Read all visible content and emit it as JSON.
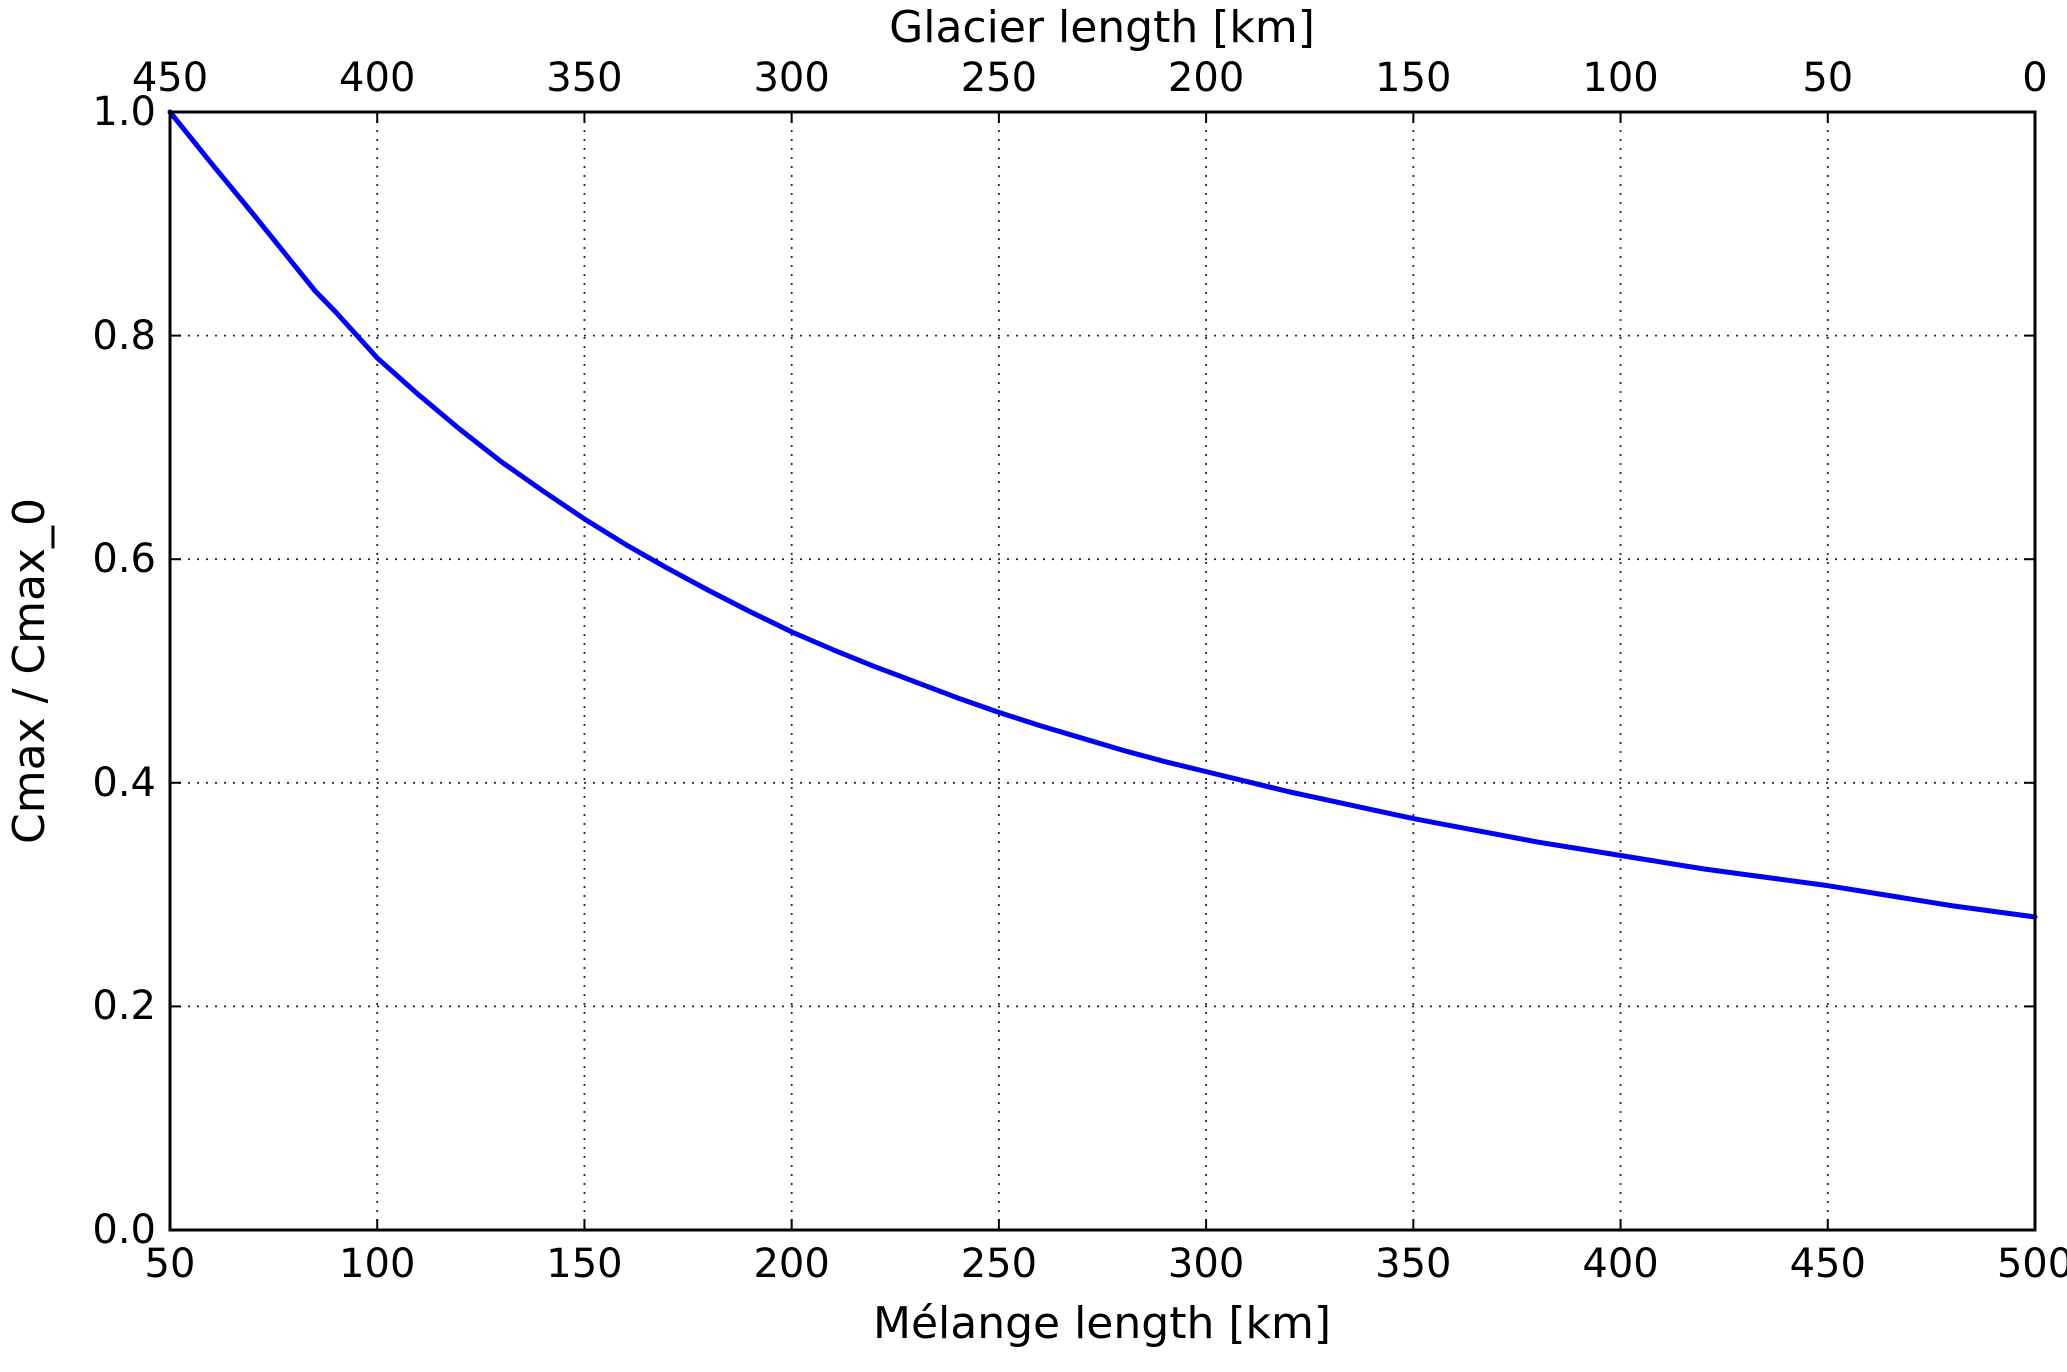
{
  "chart_data": {
    "type": "line",
    "title": "",
    "top_xlabel": "Glacier length [km]",
    "xlabel": "Mélange length [km]",
    "ylabel": "Cmax / Cmax_0",
    "xlim": [
      50,
      500
    ],
    "ylim": [
      0.0,
      1.0
    ],
    "grid": true,
    "legend": "none",
    "line_color": "#0000f5",
    "x_ticks_bottom": [
      50,
      100,
      150,
      200,
      250,
      300,
      350,
      400,
      450,
      500
    ],
    "x_tick_labels_bottom": [
      "50",
      "100",
      "150",
      "200",
      "250",
      "300",
      "350",
      "400",
      "450",
      "500"
    ],
    "x_ticks_top": [
      450,
      400,
      350,
      300,
      250,
      200,
      150,
      100,
      50,
      0
    ],
    "x_tick_labels_top": [
      "450",
      "400",
      "350",
      "300",
      "250",
      "200",
      "150",
      "100",
      "50",
      "0"
    ],
    "y_ticks": [
      0.0,
      0.2,
      0.4,
      0.6,
      0.8,
      1.0
    ],
    "y_tick_labels": [
      "0.0",
      "0.2",
      "0.4",
      "0.6",
      "0.8",
      "1.0"
    ],
    "series": [
      {
        "name": "Cmax / Cmax_0 vs mélange length",
        "x": [
          50,
          60,
          70,
          80,
          85,
          90,
          100,
          110,
          120,
          130,
          140,
          150,
          160,
          170,
          180,
          190,
          200,
          210,
          220,
          230,
          240,
          250,
          260,
          270,
          280,
          290,
          300,
          310,
          320,
          330,
          340,
          350,
          360,
          370,
          380,
          390,
          400,
          410,
          420,
          430,
          440,
          450,
          460,
          470,
          480,
          490,
          500
        ],
        "y": [
          1.0,
          0.954,
          0.909,
          0.863,
          0.84,
          0.821,
          0.78,
          0.747,
          0.716,
          0.687,
          0.661,
          0.636,
          0.613,
          0.592,
          0.572,
          0.553,
          0.535,
          0.519,
          0.504,
          0.49,
          0.476,
          0.463,
          0.451,
          0.44,
          0.429,
          0.419,
          0.41,
          0.401,
          0.392,
          0.384,
          0.376,
          0.368,
          0.361,
          0.354,
          0.347,
          0.341,
          0.335,
          0.329,
          0.323,
          0.318,
          0.313,
          0.308,
          0.302,
          0.296,
          0.29,
          0.285,
          0.28
        ]
      }
    ]
  }
}
